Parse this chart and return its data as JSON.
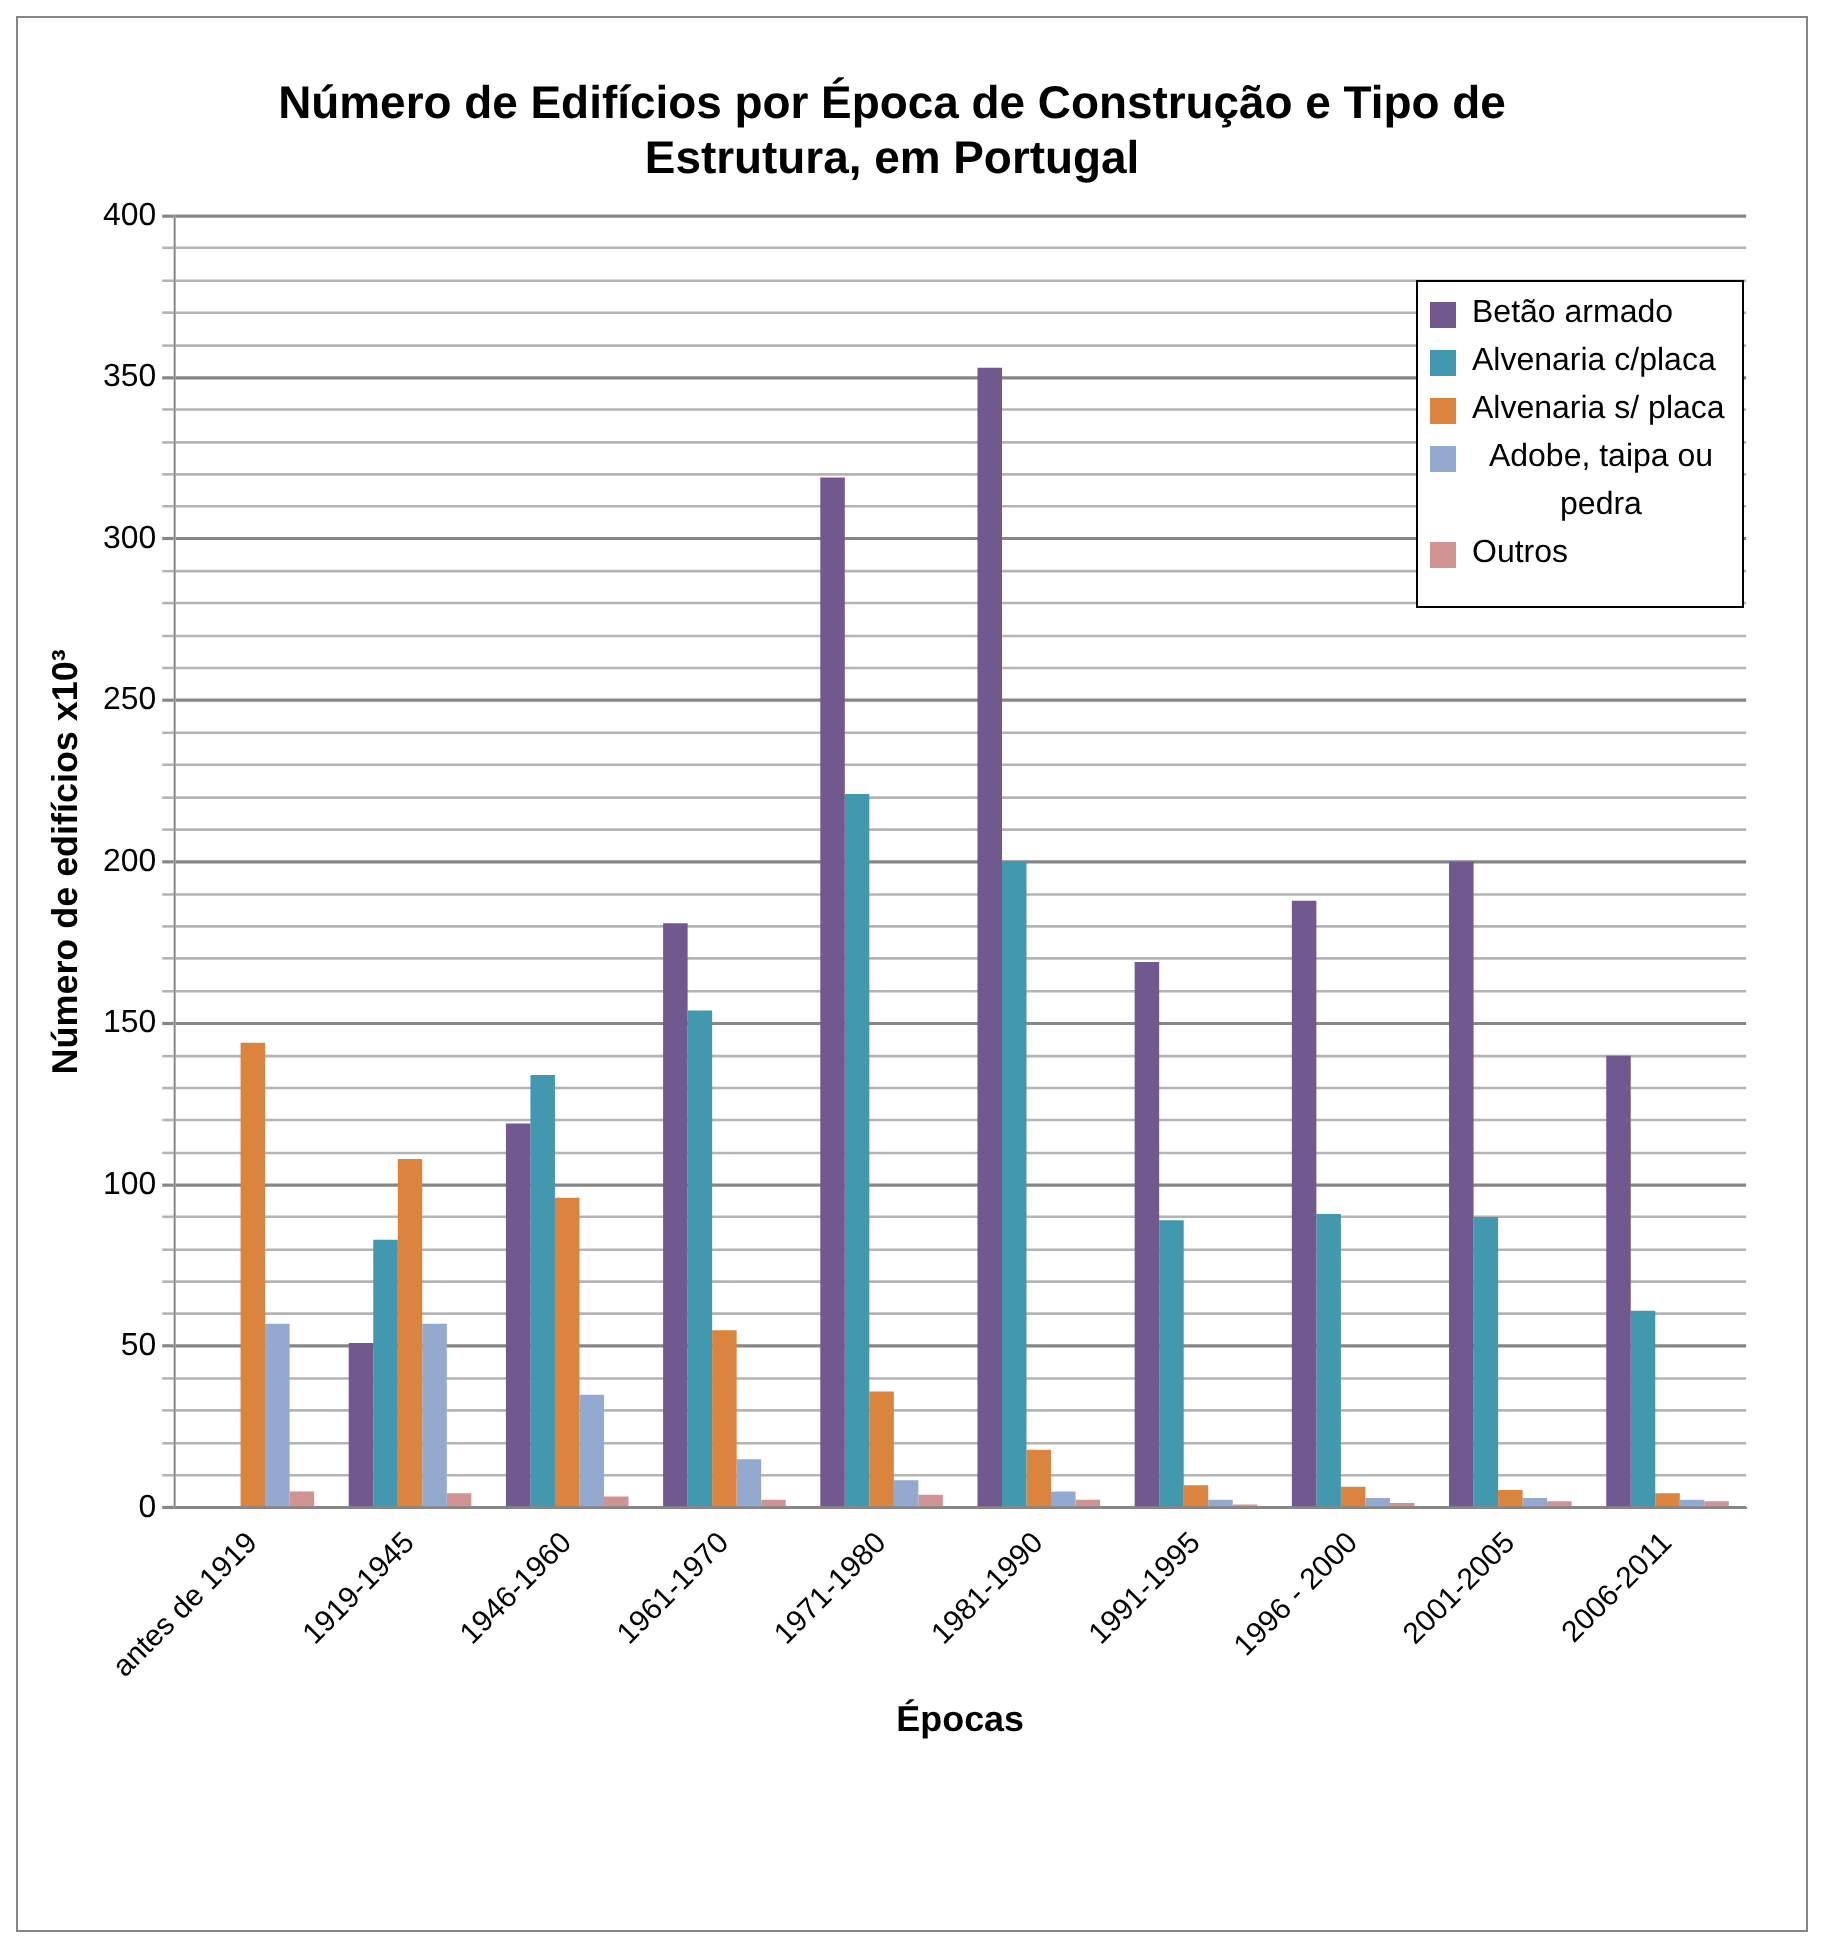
{
  "chart_data": {
    "type": "bar",
    "title": "Número de Edifícios por Época de Construção e Tipo de Estrutura, em Portugal",
    "xlabel": "Épocas",
    "ylabel": "Número de edifícios x10³",
    "categories": [
      "antes de 1919",
      "1919-1945",
      "1946-1960",
      "1961-1970",
      "1971-1980",
      "1981-1990",
      "1991-1995",
      "1996 - 2000",
      "2001-2005",
      "2006-2011"
    ],
    "series": [
      {
        "name": "Betão armado",
        "color": "#71588f",
        "values": [
          null,
          51,
          119,
          181,
          319,
          353,
          169,
          188,
          200,
          140
        ]
      },
      {
        "name": "Alvenaria c/placa",
        "color": "#4298af",
        "values": [
          null,
          83,
          134,
          154,
          221,
          200,
          89,
          91,
          90,
          61
        ]
      },
      {
        "name": "Alvenaria s/ placa",
        "color": "#db843d",
        "values": [
          144,
          108,
          96,
          55,
          36,
          18,
          7,
          6.5,
          5.5,
          4.5
        ]
      },
      {
        "name": "Adobe, taipa ou pedra",
        "color": "#93a9d0",
        "values": [
          57,
          57,
          35,
          15,
          8.5,
          5,
          2.5,
          3,
          3,
          2.5
        ]
      },
      {
        "name": "Outros",
        "color": "#d09392",
        "values": [
          5,
          4.5,
          3.5,
          2.5,
          4,
          2.5,
          1,
          1.5,
          2,
          2
        ]
      }
    ],
    "ylim": [
      0,
      400
    ],
    "yticks": [
      0,
      {
        "value": 10,
        "label": null
      },
      {
        "value": 20,
        "label": null
      },
      {
        "value": 30,
        "label": null
      },
      {
        "value": 40,
        "label": null
      },
      50,
      {
        "value": 60,
        "label": null
      },
      {
        "value": 70,
        "label": null
      },
      {
        "value": 80,
        "label": null
      },
      {
        "value": 90,
        "label": null
      },
      100,
      {
        "value": 110,
        "label": null
      },
      {
        "value": 120,
        "label": null
      },
      {
        "value": 130,
        "label": null
      },
      {
        "value": 140,
        "label": null
      },
      150,
      {
        "value": 160,
        "label": null
      },
      {
        "value": 170,
        "label": null
      },
      {
        "value": 180,
        "label": null
      },
      {
        "value": 190,
        "label": null
      },
      200,
      {
        "value": 210,
        "label": null
      },
      {
        "value": 220,
        "label": null
      },
      {
        "value": 230,
        "label": null
      },
      {
        "value": 240,
        "label": null
      },
      250,
      {
        "value": 260,
        "label": null
      },
      {
        "value": 270,
        "label": null
      },
      {
        "value": 280,
        "label": null
      },
      {
        "value": 290,
        "label": null
      },
      300,
      {
        "value": 310,
        "label": null
      },
      {
        "value": 320,
        "label": null
      },
      {
        "value": 330,
        "label": null
      },
      {
        "value": 340,
        "label": null
      },
      350,
      {
        "value": 360,
        "label": null
      },
      {
        "value": 370,
        "label": null
      },
      {
        "value": 380,
        "label": null
      },
      {
        "value": 390,
        "label": null
      },
      400
    ],
    "grid": "y",
    "legend": "top right"
  }
}
